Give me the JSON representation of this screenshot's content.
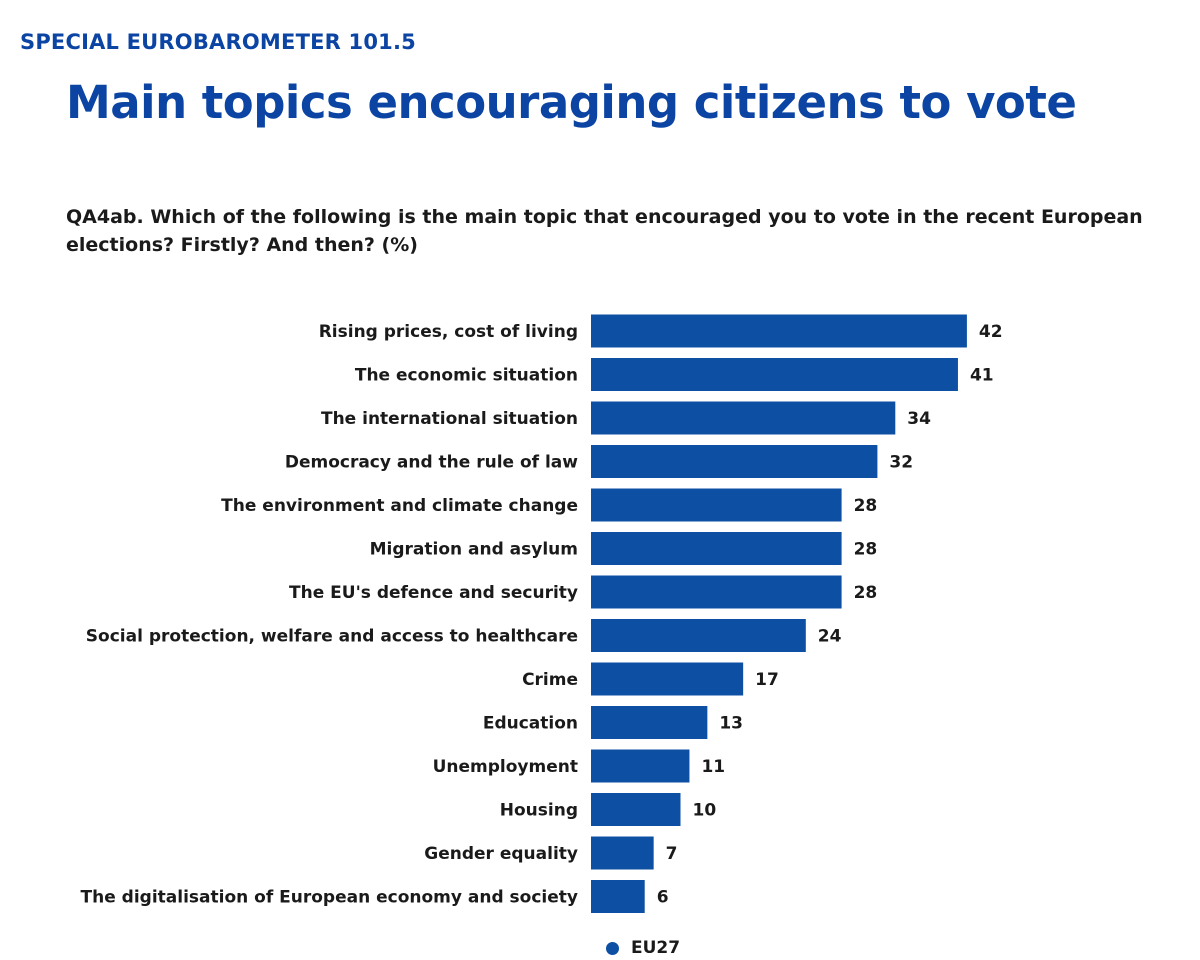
{
  "header": {
    "kicker": "SPECIAL EUROBAROMETER 101.5",
    "title": "Main topics encouraging citizens to vote",
    "question": "QA4ab. Which of the following is the main topic that encouraged you to vote in the recent European elections? Firstly? And then? (%)"
  },
  "chart_data": {
    "type": "bar",
    "orientation": "horizontal",
    "categories": [
      "Rising prices, cost of living",
      "The economic situation",
      "The international situation",
      "Democracy and the rule of law",
      "The environment and climate change",
      "Migration and asylum",
      "The EU's defence and security",
      "Social protection, welfare and access to healthcare",
      "Crime",
      "Education",
      "Unemployment",
      "Housing",
      "Gender equality",
      "The digitalisation of European economy and society"
    ],
    "series": [
      {
        "name": "EU27",
        "values": [
          42,
          41,
          34,
          32,
          28,
          28,
          28,
          24,
          17,
          13,
          11,
          10,
          7,
          6
        ]
      }
    ],
    "bar_color": "#0d4fa3",
    "grid": false,
    "legend": {
      "position": "bottom",
      "label": "EU27"
    }
  }
}
